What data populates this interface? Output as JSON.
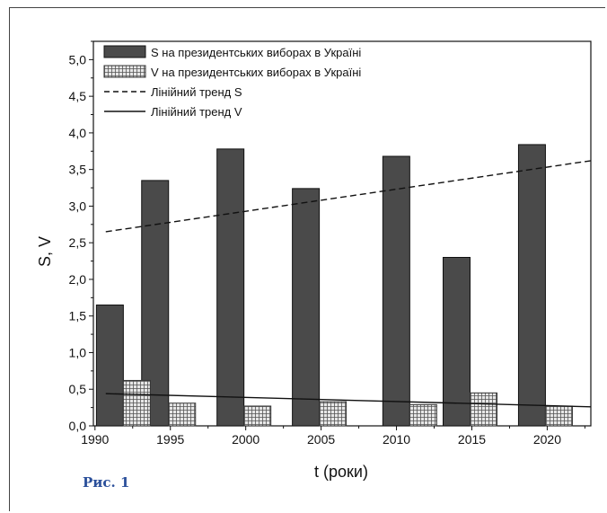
{
  "figure": {
    "caption": "Рис. 1"
  },
  "colors": {
    "s_bar": "#4a4a4a",
    "v_bar_fill": "#e6e6e6",
    "v_bar_hatch": "#555555",
    "axis": "#111111"
  },
  "chart_data": {
    "type": "bar",
    "xlabel": "t (роки)",
    "ylabel": "S, V",
    "xlim": [
      1989,
      2022
    ],
    "ylim": [
      0,
      5.25
    ],
    "x_ticks": [
      "1990",
      "1995",
      "2000",
      "2005",
      "2010",
      "2015",
      "2020"
    ],
    "y_ticks": [
      "0,0",
      "0,5",
      "1,0",
      "1,5",
      "2,0",
      "2,5",
      "3,0",
      "3,5",
      "4,0",
      "4,5",
      "5,0"
    ],
    "series": [
      {
        "name": "S на президентських виборах в Україні",
        "kind": "bar",
        "points": [
          {
            "x": 1991,
            "y": 1.65
          },
          {
            "x": 1994,
            "y": 3.35
          },
          {
            "x": 1999,
            "y": 3.78
          },
          {
            "x": 2004,
            "y": 3.24
          },
          {
            "x": 2010,
            "y": 3.68
          },
          {
            "x": 2014,
            "y": 2.3
          },
          {
            "x": 2019,
            "y": 3.84
          }
        ]
      },
      {
        "name": "V на президентських виборах в Україні",
        "kind": "bar-hatched",
        "points": [
          {
            "x": 1991,
            "y": 0.62
          },
          {
            "x": 1994,
            "y": 0.31
          },
          {
            "x": 1999,
            "y": 0.27
          },
          {
            "x": 2004,
            "y": 0.33
          },
          {
            "x": 2010,
            "y": 0.29
          },
          {
            "x": 2014,
            "y": 0.45
          },
          {
            "x": 2019,
            "y": 0.27
          }
        ]
      },
      {
        "name": "Лінійний тренд S",
        "kind": "line-dashed",
        "x": [
          1990,
          2022
        ],
        "y": [
          2.65,
          3.62
        ]
      },
      {
        "name": "Лінійний тренд V",
        "kind": "line-solid",
        "x": [
          1990,
          2022
        ],
        "y": [
          0.44,
          0.26
        ]
      }
    ],
    "legend_position": "top-left",
    "grid": false
  }
}
